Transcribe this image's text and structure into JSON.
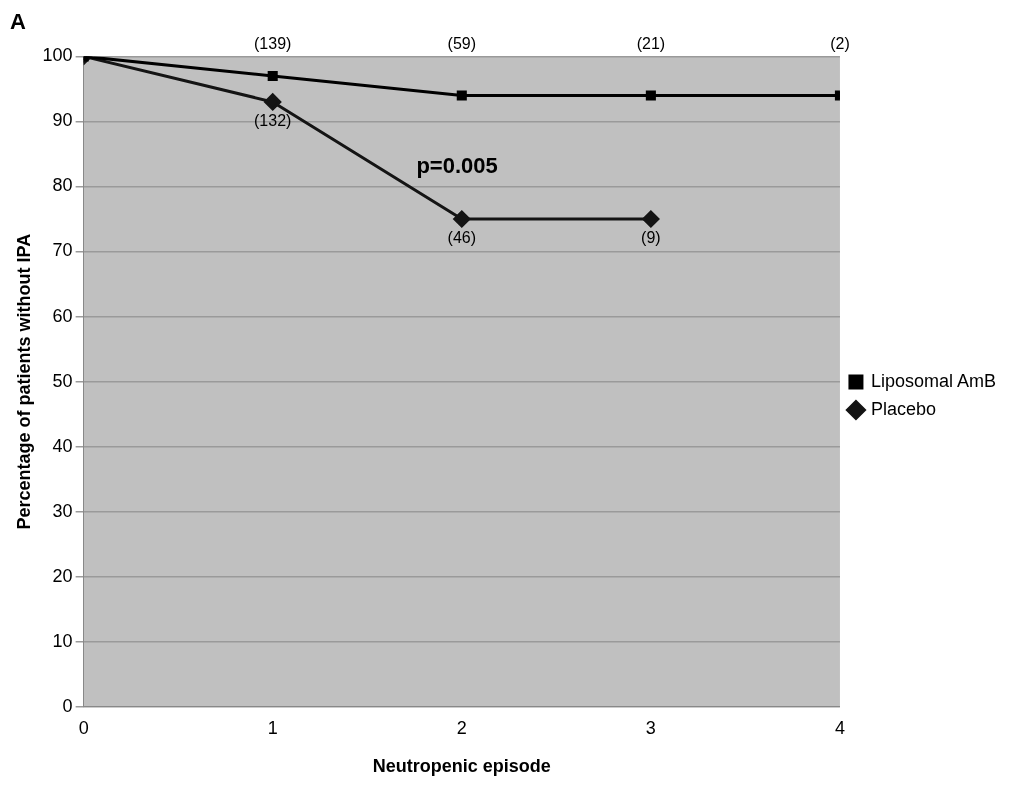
{
  "chart_data": {
    "type": "line",
    "title": "A",
    "xlabel": "Neutropenic episode",
    "ylabel": "Percentage of patients without IPA",
    "x": [
      0,
      1,
      2,
      3,
      4
    ],
    "xlim": [
      0,
      4
    ],
    "xticks": [
      0,
      1,
      2,
      3,
      4
    ],
    "ylim": [
      0,
      100
    ],
    "yticks": [
      0,
      10,
      20,
      30,
      40,
      50,
      60,
      70,
      80,
      90,
      100
    ],
    "grid": "y",
    "legend": "right",
    "series": [
      {
        "name": "Liposomal AmB",
        "color": "#000000",
        "marker": "square",
        "values": [
          100,
          97,
          94,
          94,
          94
        ]
      },
      {
        "name": "Placebo",
        "color": "#141414",
        "marker": "diamond",
        "values": [
          100,
          93,
          75,
          75,
          null
        ]
      }
    ],
    "annotations": [
      {
        "text": "(139)",
        "x": 1,
        "y": 97
      },
      {
        "text": "(59)",
        "x": 2,
        "y": 94
      },
      {
        "text": "(21)",
        "x": 3,
        "y": 94
      },
      {
        "text": "(2)",
        "x": 4,
        "y": 94
      },
      {
        "text": "(132)",
        "x": 1,
        "y": 93
      },
      {
        "text": "(46)",
        "x": 2,
        "y": 75
      },
      {
        "text": "(9)",
        "x": 3,
        "y": 75
      },
      "p=0.005"
    ]
  }
}
